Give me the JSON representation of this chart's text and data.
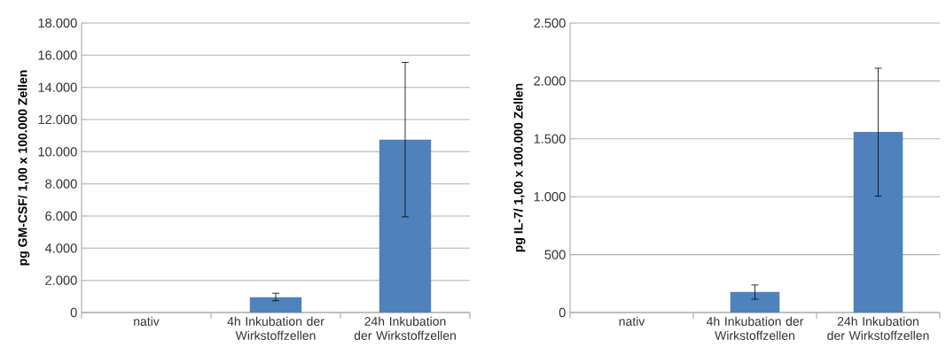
{
  "chart_data": [
    {
      "type": "bar",
      "ylabel": "pg GM-CSF/ 1,00 x 100.000  Zellen",
      "categories": [
        "nativ",
        "4h Inkubation der Wirkstoffzellen",
        "24h Inkubation der Wirkstoffzellen"
      ],
      "values": [
        0,
        950,
        10750
      ],
      "errors": [
        null,
        [
          730,
          1200
        ],
        [
          5950,
          15550
        ]
      ],
      "color": "#4f81bd",
      "ylim": [
        0,
        18000
      ],
      "yticks": [
        {
          "value": 0,
          "label": "0"
        },
        {
          "value": 2000,
          "label": "2.000"
        },
        {
          "value": 4000,
          "label": "4.000"
        },
        {
          "value": 6000,
          "label": "6.000"
        },
        {
          "value": 8000,
          "label": "8.000"
        },
        {
          "value": 10000,
          "label": "10.000"
        },
        {
          "value": 12000,
          "label": "12.000"
        },
        {
          "value": 14000,
          "label": "14.000"
        },
        {
          "value": 16000,
          "label": "16.000"
        },
        {
          "value": 18000,
          "label": "18.000"
        }
      ],
      "grid": "y"
    },
    {
      "type": "bar",
      "ylabel": "pg IL-7/ 1,00 x 100.000  Zellen",
      "categories": [
        "nativ",
        "4h Inkubation der Wirkstoffzellen",
        "24h Inkubation der Wirkstoffzellen"
      ],
      "values": [
        0,
        178,
        1560
      ],
      "errors": [
        null,
        [
          115,
          238
        ],
        [
          1005,
          2110
        ]
      ],
      "color": "#4f81bd",
      "ylim": [
        0,
        2500
      ],
      "yticks": [
        {
          "value": 0,
          "label": "0"
        },
        {
          "value": 500,
          "label": "500"
        },
        {
          "value": 1000,
          "label": "1.000"
        },
        {
          "value": 1500,
          "label": "1.500"
        },
        {
          "value": 2000,
          "label": "2.000"
        },
        {
          "value": 2500,
          "label": "2.500"
        }
      ],
      "grid": "y"
    }
  ]
}
